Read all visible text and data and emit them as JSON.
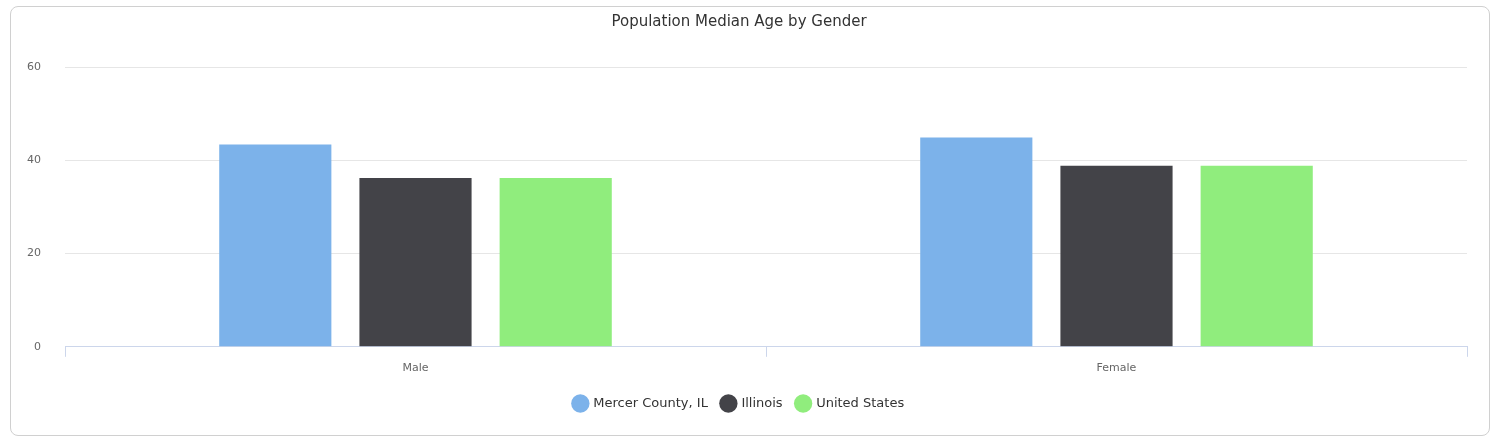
{
  "chart_data": {
    "type": "bar",
    "title": "Population Median Age by Gender",
    "categories": [
      "Male",
      "Female"
    ],
    "series": [
      {
        "name": "Mercer County, IL",
        "color": "#7cb2ea",
        "values": [
          43.4,
          44.9
        ]
      },
      {
        "name": "Illinois",
        "color": "#434348",
        "values": [
          36.2,
          38.8
        ]
      },
      {
        "name": "United States",
        "color": "#90ed7d",
        "values": [
          36.2,
          38.8
        ]
      }
    ],
    "ylim": [
      0,
      60
    ],
    "yticks": [
      0,
      20,
      40,
      60
    ],
    "grid": "y",
    "legend": "bottom"
  }
}
